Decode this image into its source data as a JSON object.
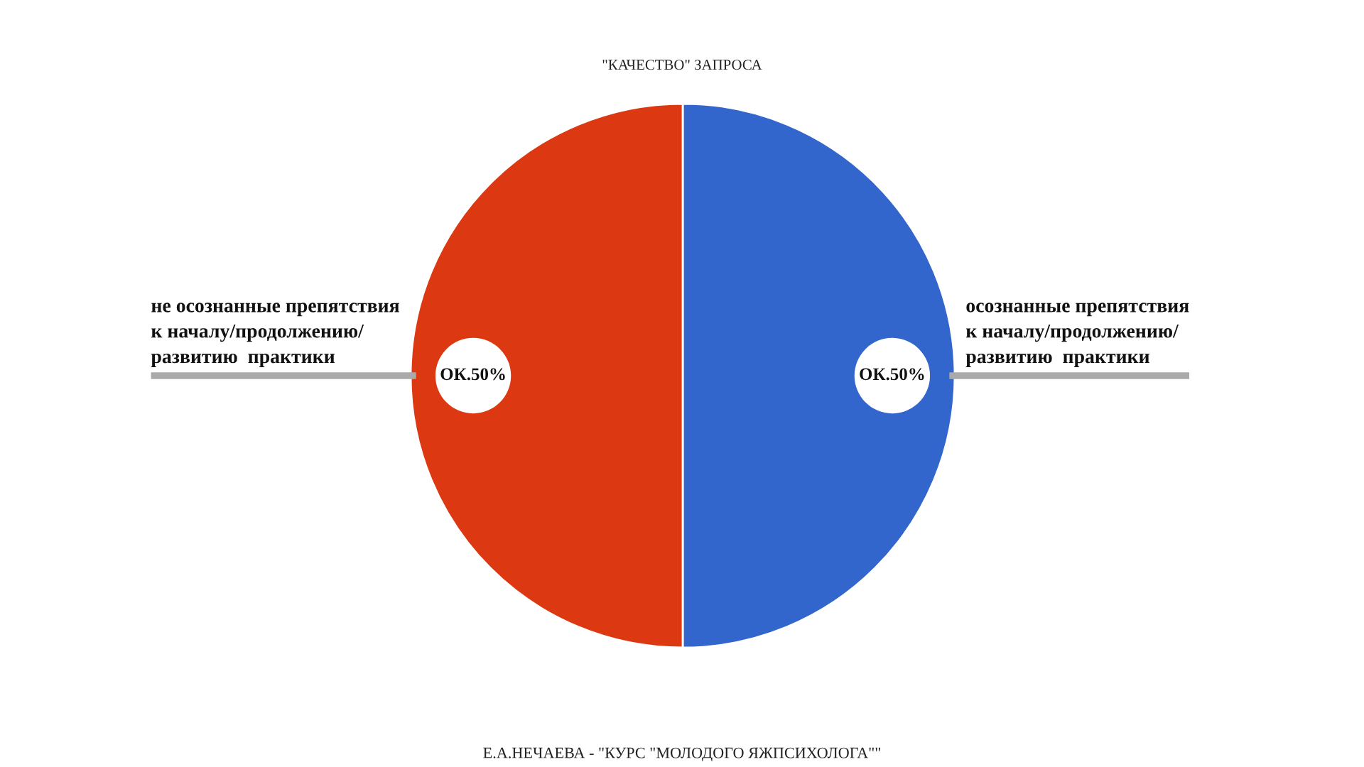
{
  "chart_data": {
    "type": "pie",
    "title": "\"КАЧЕСТВО\" ЗАПРОСА",
    "categories": [
      "осознанные препятствия\nк началу/продолжению/\nразвитию  практики",
      "не осознанные препятствия\nк началу/продолжению/\nразвитию  практики"
    ],
    "values": [
      50,
      50
    ],
    "colors": [
      "#3366cc",
      "#dc3912"
    ],
    "value_labels": [
      "ОК.50%",
      "ОК.50%"
    ],
    "annotations": [
      "Е.А.НЕЧАЕВА - \"КУРС \"МОЛОДОГО ЯЖПСИХОЛОГА\"\""
    ]
  }
}
